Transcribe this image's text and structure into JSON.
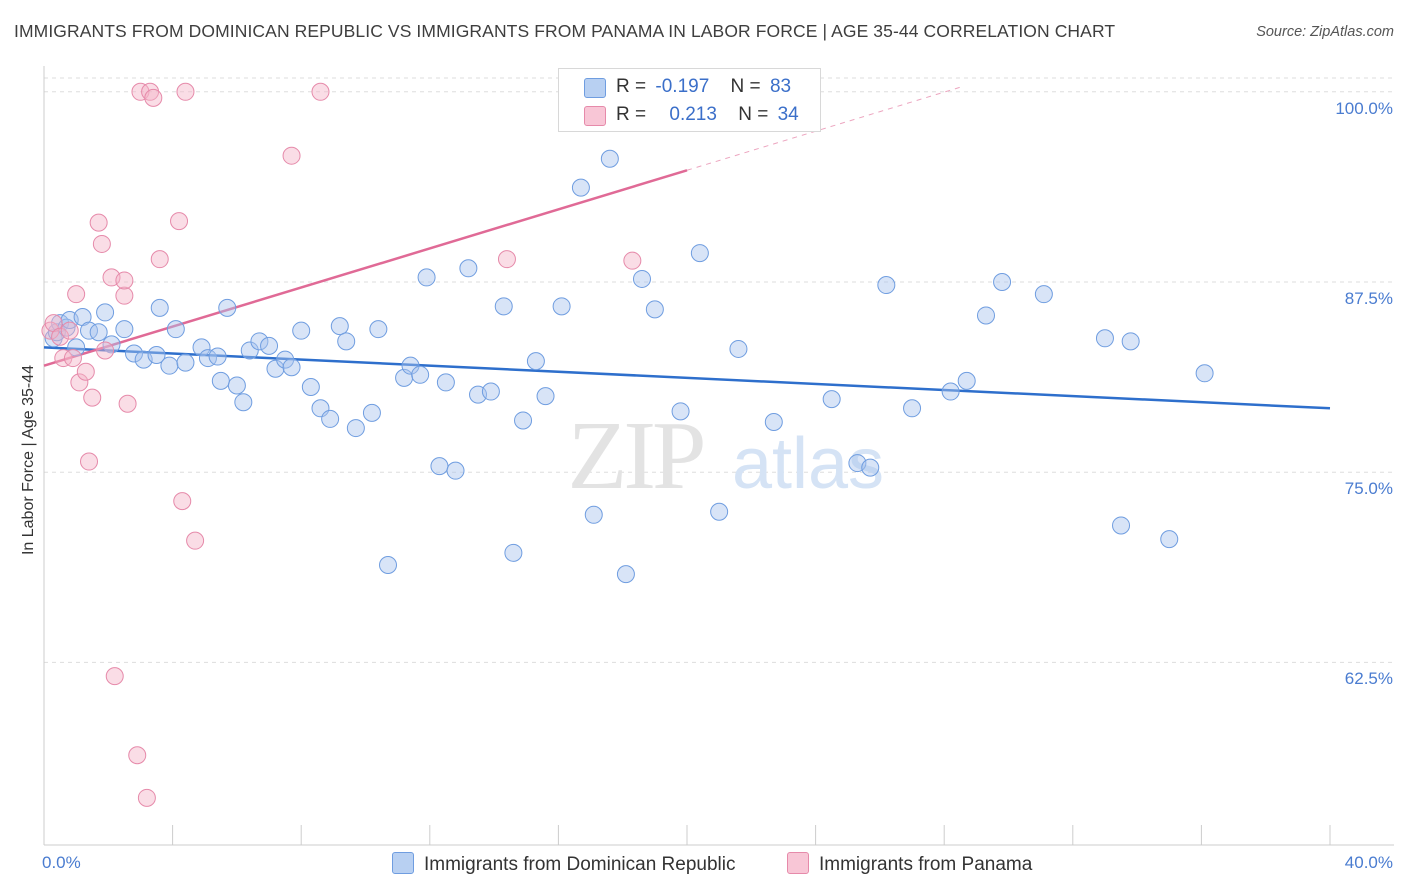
{
  "title": "IMMIGRANTS FROM DOMINICAN REPUBLIC VS IMMIGRANTS FROM PANAMA IN LABOR FORCE | AGE 35-44 CORRELATION CHART",
  "source": "Source: ZipAtlas.com",
  "watermark": {
    "zip": "ZIP",
    "atlas": "atlas"
  },
  "legend": {
    "series1": {
      "r_label": "R =",
      "r_value": "-0.197",
      "n_label": "N =",
      "n_value": "83"
    },
    "series2": {
      "r_label": "R =",
      "r_value": "0.213",
      "n_label": "N =",
      "n_value": "34"
    }
  },
  "bottom_legend": {
    "series1": "Immigrants from Dominican Republic",
    "series2": "Immigrants from Panama"
  },
  "colors": {
    "blue_fill": "#a9c4ee",
    "blue_stroke": "#6f9de0",
    "blue_line": "#2e6fcc",
    "pink_fill": "#f5b3c8",
    "pink_stroke": "#e68aaa",
    "pink_line": "#e06a96",
    "tick_text": "#4a7cd0",
    "grid": "#dddddd"
  },
  "chart_data": {
    "type": "scatter",
    "title": "IMMIGRANTS FROM DOMINICAN REPUBLIC VS IMMIGRANTS FROM PANAMA IN LABOR FORCE | AGE 35-44 CORRELATION CHART",
    "xlabel": "",
    "ylabel": "In Labor Force | Age 35-44",
    "xlim": [
      0,
      40
    ],
    "ylim": [
      50.5,
      101.3
    ],
    "x_tick_labels": [
      {
        "value": 0,
        "label": "0.0%"
      },
      {
        "value": 40,
        "label": "40.0%"
      }
    ],
    "y_ticks": [
      {
        "value": 100.0,
        "label": "100.0%"
      },
      {
        "value": 87.5,
        "label": "87.5%"
      },
      {
        "value": 75.0,
        "label": "75.0%"
      },
      {
        "value": 62.5,
        "label": "62.5%"
      }
    ],
    "series": [
      {
        "name": "Immigrants from Dominican Republic",
        "color": "blue",
        "trend": {
          "x0": 0.0,
          "y0": 83.2,
          "x1": 40.0,
          "y1": 79.2,
          "dashed_from": null
        },
        "points": [
          [
            0.3,
            83.8
          ],
          [
            0.4,
            84.2
          ],
          [
            0.5,
            84.8
          ],
          [
            0.7,
            84.5
          ],
          [
            0.8,
            85.0
          ],
          [
            1.0,
            83.2
          ],
          [
            1.2,
            85.2
          ],
          [
            1.4,
            84.3
          ],
          [
            1.7,
            84.2
          ],
          [
            1.9,
            85.5
          ],
          [
            2.1,
            83.4
          ],
          [
            2.5,
            84.4
          ],
          [
            2.8,
            82.8
          ],
          [
            3.1,
            82.4
          ],
          [
            3.5,
            82.7
          ],
          [
            3.6,
            85.8
          ],
          [
            3.9,
            82.0
          ],
          [
            4.1,
            84.4
          ],
          [
            4.4,
            82.2
          ],
          [
            4.9,
            83.2
          ],
          [
            5.1,
            82.5
          ],
          [
            5.4,
            82.6
          ],
          [
            5.5,
            81.0
          ],
          [
            5.7,
            85.8
          ],
          [
            6.0,
            80.7
          ],
          [
            6.2,
            79.6
          ],
          [
            6.4,
            83.0
          ],
          [
            6.7,
            83.6
          ],
          [
            7.0,
            83.3
          ],
          [
            7.2,
            81.8
          ],
          [
            7.5,
            82.4
          ],
          [
            7.7,
            81.9
          ],
          [
            8.0,
            84.3
          ],
          [
            8.3,
            80.6
          ],
          [
            8.6,
            79.2
          ],
          [
            8.9,
            78.5
          ],
          [
            9.2,
            84.6
          ],
          [
            9.4,
            83.6
          ],
          [
            9.7,
            77.9
          ],
          [
            10.2,
            78.9
          ],
          [
            10.4,
            84.4
          ],
          [
            10.7,
            68.9
          ],
          [
            11.2,
            81.2
          ],
          [
            11.4,
            82.0
          ],
          [
            11.7,
            81.4
          ],
          [
            11.9,
            87.8
          ],
          [
            12.3,
            75.4
          ],
          [
            12.5,
            80.9
          ],
          [
            12.8,
            75.1
          ],
          [
            13.2,
            88.4
          ],
          [
            13.5,
            80.1
          ],
          [
            13.9,
            80.3
          ],
          [
            14.3,
            85.9
          ],
          [
            14.6,
            69.7
          ],
          [
            14.9,
            78.4
          ],
          [
            15.3,
            82.3
          ],
          [
            15.6,
            80.0
          ],
          [
            16.1,
            85.9
          ],
          [
            16.7,
            93.7
          ],
          [
            17.1,
            72.2
          ],
          [
            17.6,
            95.6
          ],
          [
            18.1,
            68.3
          ],
          [
            18.6,
            87.7
          ],
          [
            19.0,
            85.7
          ],
          [
            19.8,
            79.0
          ],
          [
            20.4,
            89.4
          ],
          [
            21.0,
            72.4
          ],
          [
            21.6,
            83.1
          ],
          [
            22.7,
            78.3
          ],
          [
            24.5,
            79.8
          ],
          [
            25.3,
            75.6
          ],
          [
            25.7,
            75.3
          ],
          [
            26.2,
            87.3
          ],
          [
            27.0,
            79.2
          ],
          [
            28.2,
            80.3
          ],
          [
            28.7,
            81.0
          ],
          [
            29.3,
            85.3
          ],
          [
            29.8,
            87.5
          ],
          [
            31.1,
            86.7
          ],
          [
            33.0,
            83.8
          ],
          [
            33.5,
            71.5
          ],
          [
            33.8,
            83.6
          ],
          [
            35.0,
            70.6
          ],
          [
            36.1,
            81.5
          ]
        ]
      },
      {
        "name": "Immigrants from Panama",
        "color": "pink",
        "trend": {
          "x0": 0.0,
          "y0": 82.0,
          "x1": 28.5,
          "y1": 100.3,
          "dashed_from": 20.0
        },
        "points": [
          [
            0.2,
            84.3
          ],
          [
            0.3,
            84.8
          ],
          [
            0.5,
            83.9
          ],
          [
            0.6,
            82.5
          ],
          [
            0.8,
            84.3
          ],
          [
            0.9,
            82.5
          ],
          [
            1.0,
            86.7
          ],
          [
            1.1,
            80.9
          ],
          [
            1.3,
            81.6
          ],
          [
            1.4,
            75.7
          ],
          [
            1.5,
            79.9
          ],
          [
            1.7,
            91.4
          ],
          [
            1.8,
            90.0
          ],
          [
            1.9,
            83.0
          ],
          [
            2.1,
            87.8
          ],
          [
            2.2,
            61.6
          ],
          [
            2.5,
            86.6
          ],
          [
            2.5,
            87.6
          ],
          [
            2.6,
            79.5
          ],
          [
            2.9,
            56.4
          ],
          [
            3.0,
            100.0
          ],
          [
            3.2,
            53.6
          ],
          [
            3.3,
            100.0
          ],
          [
            3.4,
            99.6
          ],
          [
            3.6,
            89.0
          ],
          [
            4.2,
            91.5
          ],
          [
            4.3,
            73.1
          ],
          [
            4.4,
            100.0
          ],
          [
            4.7,
            70.5
          ],
          [
            7.7,
            95.8
          ],
          [
            8.6,
            100.0
          ],
          [
            14.4,
            89.0
          ],
          [
            18.3,
            88.9
          ]
        ]
      }
    ]
  }
}
